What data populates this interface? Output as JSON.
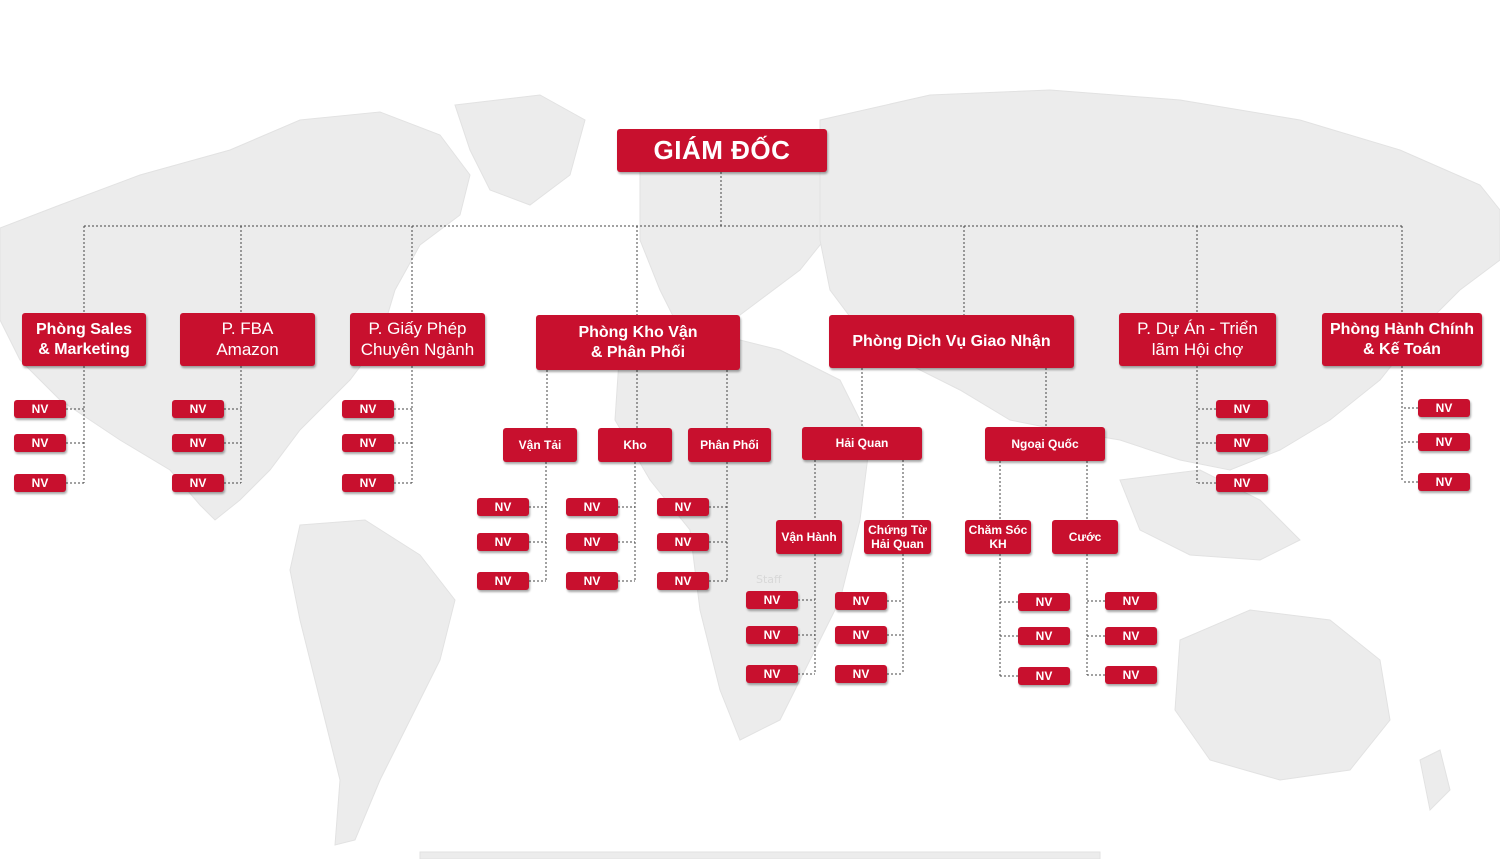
{
  "colors": {
    "box_fill": "#c8102e",
    "box_text": "#ffffff",
    "connector": "#444444",
    "map": "#ececec"
  },
  "root": {
    "label": "GIÁM ĐỐC"
  },
  "departments": {
    "sales": {
      "label": "Phòng Sales\n& Marketing"
    },
    "fba": {
      "label": "P. FBA\nAmazon"
    },
    "license": {
      "label": "P. Giấy Phép\nChuyên Ngành"
    },
    "warehouse": {
      "label": "Phòng Kho Vận\n& Phân Phối"
    },
    "forwarding": {
      "label": "Phòng Dịch Vụ Giao Nhận"
    },
    "project": {
      "label": "P. Dự Án - Triển\nlãm Hội chợ"
    },
    "admin": {
      "label": "Phòng Hành Chính\n& Kế Toán"
    }
  },
  "subunits": {
    "transport": {
      "label": "Vận Tải"
    },
    "storage": {
      "label": "Kho"
    },
    "distribution": {
      "label": "Phân Phối"
    },
    "customs": {
      "label": "Hải Quan"
    },
    "overseas": {
      "label": "Ngoại Quốc"
    },
    "operations": {
      "label": "Vận Hành"
    },
    "customs_docs": {
      "label": "Chứng Từ\nHải Quan"
    },
    "customer_care": {
      "label": "Chăm Sóc\nKH"
    },
    "freight": {
      "label": "Cước"
    }
  },
  "staff_label": "NV",
  "watermark": "Staff"
}
